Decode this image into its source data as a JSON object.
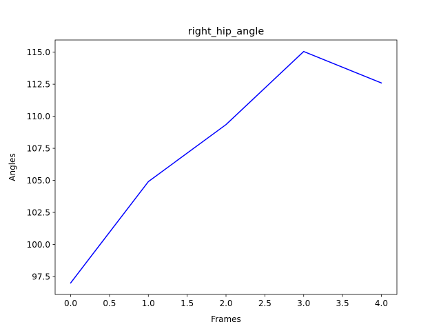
{
  "chart_data": {
    "type": "line",
    "title": "right_hip_angle",
    "xlabel": "Frames",
    "ylabel": "Angles",
    "x": [
      0,
      1,
      2,
      3,
      4
    ],
    "series": [
      {
        "values": [
          97.0,
          104.9,
          109.35,
          115.05,
          112.6
        ],
        "color": "#0000ff"
      }
    ],
    "xlim": [
      -0.2,
      4.2
    ],
    "ylim": [
      96.1,
      115.95
    ],
    "xticks": [
      0.0,
      0.5,
      1.0,
      1.5,
      2.0,
      2.5,
      3.0,
      3.5,
      4.0
    ],
    "xtick_labels": [
      "0.0",
      "0.5",
      "1.0",
      "1.5",
      "2.0",
      "2.5",
      "3.0",
      "3.5",
      "4.0"
    ],
    "yticks": [
      97.5,
      100.0,
      102.5,
      105.0,
      107.5,
      110.0,
      112.5,
      115.0
    ],
    "ytick_labels": [
      "97.5",
      "100.0",
      "102.5",
      "105.0",
      "107.5",
      "110.0",
      "112.5",
      "115.0"
    ],
    "grid": false,
    "legend": false
  }
}
